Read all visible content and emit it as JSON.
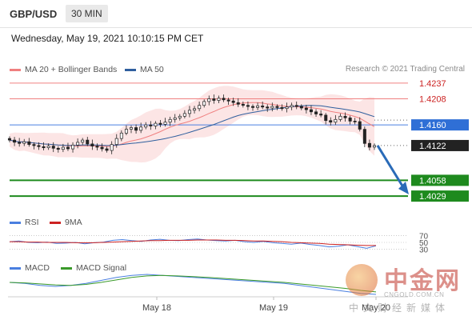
{
  "header": {
    "symbol": "GBP/USD",
    "interval": "30 MIN"
  },
  "timestamp": "Wednesday, May 19, 2021 10:10:15 PM CET",
  "credit": "Research © 2021 Trading Central",
  "colors": {
    "ma20": "#f08080",
    "ma50": "#2f5f9e",
    "band_fill": "#fbdcdc",
    "resistance": "#f08080",
    "pivot": "#4a7fe0",
    "support": "#1e8a1e",
    "arrow": "#2a6bb8",
    "last_price_bg": "#222222",
    "pivot_bg": "#2f6fd6",
    "support_bg": "#1e8a1e",
    "rsi": "#4a7fe0",
    "rsi_ma": "#cc2222",
    "macd": "#4a7fe0",
    "macd_signal": "#3a9a2a"
  },
  "chart_data": [
    {
      "type": "candlestick",
      "title": "GBP/USD",
      "legend": [
        "MA 20 + Bollinger Bands",
        "MA 50"
      ],
      "x_tick_labels": [
        "May 18",
        "May 19",
        "May 20"
      ],
      "ylim": [
        1.401,
        1.425
      ],
      "levels": [
        {
          "value": 1.4237,
          "label": "1.4237",
          "role": "resistance"
        },
        {
          "value": 1.4208,
          "label": "1.4208",
          "role": "resistance"
        },
        {
          "value": 1.416,
          "label": "1.4160",
          "role": "pivot"
        },
        {
          "value": 1.4122,
          "label": "1.4122",
          "role": "last_price"
        },
        {
          "value": 1.4058,
          "label": "1.4058",
          "role": "support"
        },
        {
          "value": 1.4029,
          "label": "1.4029",
          "role": "support"
        }
      ],
      "price_path": [
        1.4132,
        1.4128,
        1.4126,
        1.4129,
        1.4124,
        1.4122,
        1.412,
        1.4118,
        1.4121,
        1.4117,
        1.4115,
        1.4119,
        1.4116,
        1.4123,
        1.4128,
        1.4132,
        1.4125,
        1.4121,
        1.4119,
        1.4116,
        1.4113,
        1.4124,
        1.4135,
        1.4145,
        1.4152,
        1.4155,
        1.415,
        1.4156,
        1.416,
        1.4158,
        1.4163,
        1.4161,
        1.4165,
        1.417,
        1.4173,
        1.4176,
        1.4181,
        1.4187,
        1.419,
        1.4196,
        1.4203,
        1.4208,
        1.4205,
        1.4209,
        1.4206,
        1.4204,
        1.4201,
        1.4198,
        1.4196,
        1.4194,
        1.4192,
        1.4195,
        1.4193,
        1.4191,
        1.4194,
        1.4192,
        1.419,
        1.4193,
        1.4196,
        1.4194,
        1.4191,
        1.4188,
        1.4184,
        1.418,
        1.4178,
        1.4168,
        1.4165,
        1.417,
        1.4176,
        1.4173,
        1.4167,
        1.4166,
        1.4152,
        1.4126,
        1.4119,
        1.4122
      ],
      "forecast": {
        "from": 1.4122,
        "to": 1.4038
      },
      "candle_count": 76
    },
    {
      "type": "line",
      "title": "RSI",
      "legend": [
        "RSI",
        "9MA"
      ],
      "y_tick_labels": [
        "70",
        "50",
        "30"
      ],
      "ylim": [
        20,
        80
      ],
      "series": [
        {
          "name": "RSI",
          "values": [
            52,
            54,
            50,
            49,
            51,
            47,
            48,
            50,
            46,
            49,
            51,
            56,
            58,
            55,
            53,
            57,
            59,
            56,
            55,
            58,
            60,
            57,
            55,
            54,
            56,
            52,
            50,
            53,
            49,
            47,
            45,
            48,
            44,
            41,
            37,
            39,
            43,
            38,
            33,
            40
          ]
        },
        {
          "name": "9MA",
          "values": [
            52,
            52,
            51,
            51,
            50,
            50,
            50,
            49,
            49,
            49,
            50,
            51,
            52,
            53,
            54,
            55,
            55,
            56,
            56,
            56,
            57,
            57,
            57,
            56,
            56,
            55,
            54,
            54,
            53,
            52,
            50,
            49,
            48,
            47,
            45,
            44,
            43,
            42,
            41,
            41
          ]
        }
      ]
    },
    {
      "type": "line",
      "title": "MACD",
      "legend": [
        "MACD",
        "MACD Signal"
      ],
      "series": [
        {
          "name": "MACD",
          "values": [
            0.3,
            0.2,
            0.0,
            -0.1,
            0.0,
            0.2,
            0.5,
            0.8,
            1.0,
            1.1,
            1.0,
            0.9,
            0.8,
            0.7,
            0.6,
            0.5,
            0.4,
            0.3,
            0.2,
            0.0,
            -0.2,
            -0.4,
            -0.6,
            -0.8,
            -0.9
          ]
        },
        {
          "name": "MACD Signal",
          "values": [
            0.3,
            0.25,
            0.15,
            0.05,
            0.0,
            0.1,
            0.3,
            0.55,
            0.8,
            0.95,
            1.0,
            0.95,
            0.88,
            0.8,
            0.7,
            0.6,
            0.5,
            0.4,
            0.3,
            0.15,
            0.0,
            -0.15,
            -0.3,
            -0.5,
            -0.65
          ]
        }
      ]
    }
  ],
  "watermark": {
    "brand": "中金网",
    "url": "CNGOLD.COM.CN",
    "tagline": "中文财经新媒体"
  }
}
